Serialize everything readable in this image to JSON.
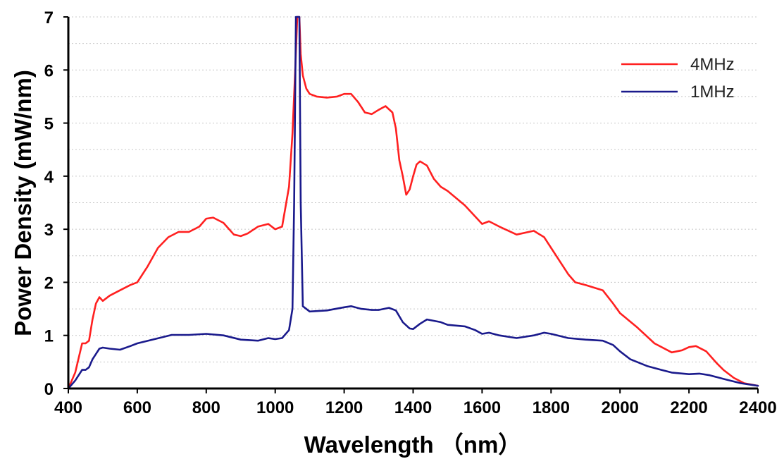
{
  "chart_data": {
    "type": "line",
    "title": "",
    "xlabel": "Wavelength （nm）",
    "ylabel": "Power Density (mW/nm)",
    "xlim": [
      400,
      2400
    ],
    "ylim": [
      0,
      7
    ],
    "xticks": [
      400,
      600,
      800,
      1000,
      1200,
      1400,
      1600,
      1800,
      2000,
      2200,
      2400
    ],
    "yticks": [
      0,
      1,
      2,
      3,
      4,
      5,
      6,
      7
    ],
    "grid": "horizontal dashed",
    "legend_position": "top-right",
    "series": [
      {
        "name": "4MHz",
        "color": "#ff2020",
        "x": [
          400,
          420,
          440,
          450,
          460,
          470,
          480,
          490,
          500,
          520,
          550,
          580,
          600,
          630,
          660,
          690,
          720,
          750,
          780,
          800,
          820,
          850,
          880,
          900,
          920,
          950,
          980,
          1000,
          1020,
          1040,
          1050,
          1058,
          1064,
          1070,
          1074,
          1080,
          1090,
          1100,
          1120,
          1150,
          1180,
          1200,
          1220,
          1240,
          1260,
          1280,
          1300,
          1320,
          1340,
          1350,
          1360,
          1370,
          1380,
          1390,
          1400,
          1410,
          1420,
          1440,
          1460,
          1480,
          1500,
          1550,
          1600,
          1620,
          1650,
          1700,
          1750,
          1780,
          1800,
          1830,
          1850,
          1870,
          1900,
          1950,
          1980,
          2000,
          2050,
          2100,
          2150,
          2180,
          2200,
          2220,
          2250,
          2280,
          2300,
          2330,
          2360,
          2400
        ],
        "y": [
          0.0,
          0.3,
          0.85,
          0.85,
          0.9,
          1.3,
          1.6,
          1.72,
          1.65,
          1.75,
          1.85,
          1.95,
          2.0,
          2.3,
          2.65,
          2.85,
          2.95,
          2.95,
          3.05,
          3.2,
          3.22,
          3.12,
          2.9,
          2.87,
          2.92,
          3.05,
          3.1,
          3.0,
          3.05,
          3.8,
          4.8,
          6.0,
          7.0,
          7.0,
          6.3,
          5.9,
          5.65,
          5.55,
          5.5,
          5.48,
          5.5,
          5.55,
          5.55,
          5.4,
          5.2,
          5.17,
          5.25,
          5.32,
          5.2,
          4.9,
          4.3,
          4.0,
          3.65,
          3.75,
          4.0,
          4.22,
          4.28,
          4.2,
          3.95,
          3.8,
          3.72,
          3.45,
          3.1,
          3.15,
          3.05,
          2.9,
          2.97,
          2.85,
          2.65,
          2.35,
          2.15,
          2.0,
          1.95,
          1.85,
          1.6,
          1.42,
          1.15,
          0.85,
          0.68,
          0.72,
          0.78,
          0.8,
          0.7,
          0.48,
          0.35,
          0.2,
          0.1,
          0.05
        ]
      },
      {
        "name": "1MHz",
        "color": "#1a1a8c",
        "x": [
          400,
          420,
          440,
          450,
          460,
          470,
          480,
          490,
          500,
          520,
          550,
          580,
          600,
          650,
          700,
          750,
          800,
          850,
          900,
          950,
          980,
          1000,
          1020,
          1040,
          1050,
          1055,
          1060,
          1066,
          1070,
          1074,
          1080,
          1100,
          1150,
          1200,
          1220,
          1250,
          1280,
          1300,
          1330,
          1350,
          1370,
          1390,
          1400,
          1420,
          1440,
          1480,
          1500,
          1550,
          1580,
          1600,
          1620,
          1650,
          1700,
          1750,
          1780,
          1800,
          1850,
          1900,
          1950,
          1980,
          2000,
          2030,
          2080,
          2120,
          2150,
          2200,
          2230,
          2260,
          2300,
          2350,
          2400
        ],
        "y": [
          0.0,
          0.15,
          0.35,
          0.35,
          0.4,
          0.55,
          0.65,
          0.75,
          0.77,
          0.75,
          0.73,
          0.8,
          0.85,
          0.93,
          1.01,
          1.01,
          1.03,
          1.0,
          0.92,
          0.9,
          0.95,
          0.93,
          0.95,
          1.1,
          1.5,
          3.5,
          7.0,
          7.0,
          7.0,
          3.5,
          1.55,
          1.45,
          1.47,
          1.53,
          1.55,
          1.5,
          1.48,
          1.48,
          1.52,
          1.47,
          1.25,
          1.13,
          1.12,
          1.22,
          1.3,
          1.25,
          1.2,
          1.17,
          1.1,
          1.03,
          1.05,
          1.0,
          0.95,
          1.0,
          1.05,
          1.03,
          0.95,
          0.92,
          0.9,
          0.82,
          0.7,
          0.55,
          0.42,
          0.35,
          0.3,
          0.27,
          0.28,
          0.25,
          0.18,
          0.1,
          0.05
        ]
      }
    ]
  }
}
